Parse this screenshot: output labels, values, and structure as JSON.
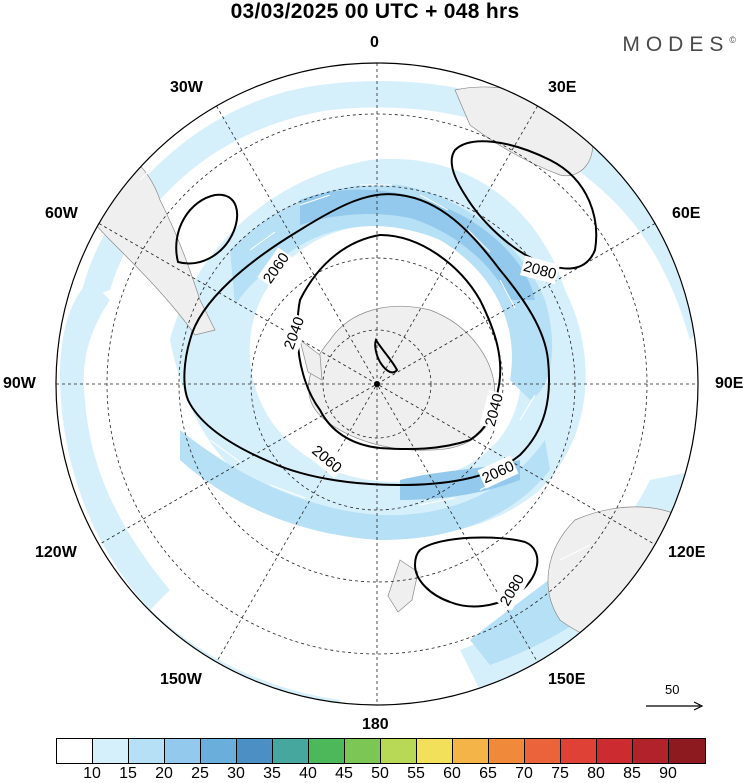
{
  "title": "03/03/2025  00 UTC  + 048 hrs",
  "brand": "MODES",
  "brand_mark": "©",
  "longitude_labels": {
    "top": "0",
    "lon_30e": "30E",
    "lon_60e": "60E",
    "lon_90e": "90E",
    "lon_120e": "120E",
    "lon_150e": "150E",
    "bottom": "180",
    "lon_150w": "150W",
    "lon_120w": "120W",
    "lon_90w": "90W",
    "lon_60w": "60W",
    "lon_30w": "30W"
  },
  "contour_labels": {
    "c2060_left": "2060",
    "c2040_left": "2040",
    "c2080_ne": "2080",
    "c2040_right": "2040",
    "c2060_lower_left": "2060",
    "c2060_lower_right": "2060",
    "c2080_se": "2080"
  },
  "reference_vector": "50",
  "colorbar": {
    "colors": [
      "#ffffff",
      "#d6f0fb",
      "#b6e0f6",
      "#93c9ec",
      "#6aaedc",
      "#4c8fc4",
      "#46a79e",
      "#4cb85a",
      "#7cc656",
      "#b8d955",
      "#f3e05a",
      "#f4b448",
      "#f08a3a",
      "#ea633a",
      "#df4136",
      "#cc2c2f",
      "#b1222b",
      "#8c1a1f"
    ],
    "ticks": [
      "10",
      "15",
      "20",
      "25",
      "30",
      "35",
      "40",
      "45",
      "50",
      "55",
      "60",
      "65",
      "70",
      "75",
      "80",
      "85",
      "90"
    ]
  },
  "icons": {
    "reference_arrow": "arrow-right-icon",
    "pole_marker": "dot-icon"
  }
}
